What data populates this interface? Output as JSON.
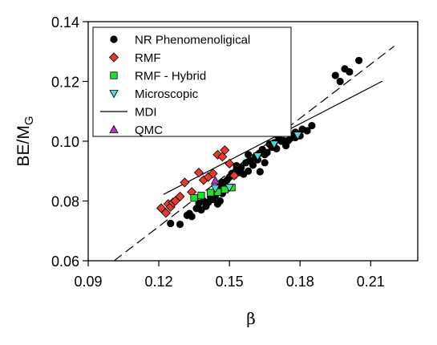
{
  "chart_data": {
    "type": "scatter",
    "xlabel": "β",
    "ylabel": {
      "base": "BE/M",
      "sub": "G"
    },
    "xlim": [
      0.09,
      0.23
    ],
    "ylim": [
      0.06,
      0.14
    ],
    "x_ticks": [
      {
        "value": 0.09,
        "label": "0.09"
      },
      {
        "value": 0.12,
        "label": "0.12"
      },
      {
        "value": 0.15,
        "label": "0.15"
      },
      {
        "value": 0.18,
        "label": "0.18"
      },
      {
        "value": 0.21,
        "label": "0.21"
      }
    ],
    "y_ticks": [
      {
        "value": 0.06,
        "label": "0.06"
      },
      {
        "value": 0.08,
        "label": "0.08"
      },
      {
        "value": 0.1,
        "label": "0.10"
      },
      {
        "value": 0.12,
        "label": "0.12"
      },
      {
        "value": 0.14,
        "label": "0.14"
      }
    ],
    "grid": false,
    "legend_position": "top-left",
    "series": [
      {
        "name": "NR Phenomenoligical",
        "marker": "circle",
        "color": "#000000",
        "points": [
          [
            0.125,
            0.0725
          ],
          [
            0.129,
            0.0722
          ],
          [
            0.132,
            0.0752
          ],
          [
            0.133,
            0.0758
          ],
          [
            0.134,
            0.0748
          ],
          [
            0.136,
            0.0775
          ],
          [
            0.137,
            0.0792
          ],
          [
            0.138,
            0.077
          ],
          [
            0.139,
            0.08
          ],
          [
            0.14,
            0.0782
          ],
          [
            0.141,
            0.0795
          ],
          [
            0.142,
            0.0812
          ],
          [
            0.143,
            0.0805
          ],
          [
            0.144,
            0.0818
          ],
          [
            0.145,
            0.0835
          ],
          [
            0.145,
            0.079
          ],
          [
            0.146,
            0.085
          ],
          [
            0.146,
            0.08
          ],
          [
            0.147,
            0.0862
          ],
          [
            0.147,
            0.0825
          ],
          [
            0.148,
            0.0855
          ],
          [
            0.149,
            0.087
          ],
          [
            0.15,
            0.088
          ],
          [
            0.151,
            0.0892
          ],
          [
            0.152,
            0.0885
          ],
          [
            0.153,
            0.0905
          ],
          [
            0.153,
            0.0918
          ],
          [
            0.154,
            0.0895
          ],
          [
            0.155,
            0.0912
          ],
          [
            0.156,
            0.089
          ],
          [
            0.157,
            0.0928
          ],
          [
            0.158,
            0.09
          ],
          [
            0.158,
            0.0955
          ],
          [
            0.159,
            0.0935
          ],
          [
            0.16,
            0.092
          ],
          [
            0.161,
            0.0945
          ],
          [
            0.162,
            0.0938
          ],
          [
            0.163,
            0.096
          ],
          [
            0.163,
            0.0898
          ],
          [
            0.164,
            0.0972
          ],
          [
            0.165,
            0.0955
          ],
          [
            0.165,
            0.0928
          ],
          [
            0.166,
            0.0962
          ],
          [
            0.167,
            0.099
          ],
          [
            0.168,
            0.098
          ],
          [
            0.169,
            0.0995
          ],
          [
            0.17,
            0.0975
          ],
          [
            0.171,
            0.1008
          ],
          [
            0.172,
            0.1
          ],
          [
            0.173,
            0.1002
          ],
          [
            0.174,
            0.0985
          ],
          [
            0.175,
            0.1002
          ],
          [
            0.176,
            0.101
          ],
          [
            0.177,
            0.102
          ],
          [
            0.178,
            0.103
          ],
          [
            0.178,
            0.1012
          ],
          [
            0.179,
            0.1025
          ],
          [
            0.18,
            0.1018
          ],
          [
            0.181,
            0.104
          ],
          [
            0.183,
            0.1035
          ],
          [
            0.185,
            0.1052
          ],
          [
            0.195,
            0.122
          ],
          [
            0.197,
            0.12
          ],
          [
            0.199,
            0.1242
          ],
          [
            0.201,
            0.1232
          ],
          [
            0.205,
            0.127
          ]
        ]
      },
      {
        "name": "RMF",
        "marker": "diamond",
        "color": "#e8392e",
        "points": [
          [
            0.121,
            0.0776
          ],
          [
            0.123,
            0.076
          ],
          [
            0.124,
            0.079
          ],
          [
            0.125,
            0.078
          ],
          [
            0.126,
            0.0795
          ],
          [
            0.127,
            0.08
          ],
          [
            0.129,
            0.0815
          ],
          [
            0.131,
            0.0862
          ],
          [
            0.134,
            0.083
          ],
          [
            0.137,
            0.0895
          ],
          [
            0.139,
            0.087
          ],
          [
            0.141,
            0.088
          ],
          [
            0.143,
            0.0892
          ],
          [
            0.145,
            0.0955
          ],
          [
            0.147,
            0.0948
          ],
          [
            0.148,
            0.097
          ],
          [
            0.15,
            0.0925
          ],
          [
            0.152,
            0.0885
          ]
        ]
      },
      {
        "name": "RMF - Hybrid",
        "marker": "square",
        "color": "#22e02a",
        "points": [
          [
            0.135,
            0.081
          ],
          [
            0.138,
            0.0818
          ],
          [
            0.142,
            0.0828
          ],
          [
            0.145,
            0.083
          ],
          [
            0.148,
            0.0838
          ],
          [
            0.151,
            0.0845
          ]
        ]
      },
      {
        "name": "Microscopic",
        "marker": "triangle-down",
        "color": "#4fd8d8",
        "points": [
          [
            0.144,
            0.0842
          ],
          [
            0.15,
            0.0845
          ],
          [
            0.162,
            0.095
          ],
          [
            0.169,
            0.099
          ],
          [
            0.179,
            0.102
          ]
        ]
      },
      {
        "name": "MDI",
        "marker": "line",
        "color": "#000000",
        "points": [
          [
            0.122,
            0.0822
          ],
          [
            0.215,
            0.1201
          ]
        ]
      },
      {
        "name": "QMC",
        "marker": "triangle-up",
        "color": "#c02fd0",
        "points": [
          [
            0.144,
            0.0868
          ]
        ]
      }
    ],
    "fit_line": {
      "style": "dashed",
      "color": "#000000",
      "points": [
        [
          0.101,
          0.06
        ],
        [
          0.22,
          0.1318
        ]
      ]
    }
  }
}
